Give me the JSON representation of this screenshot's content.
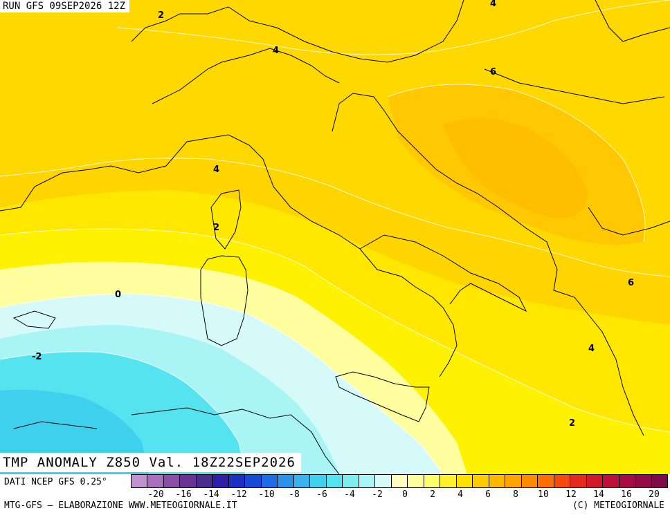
{
  "header": {
    "run_label": "RUN GFS 09SEP2026 12Z"
  },
  "title": {
    "text": "TMP ANOMALY Z850 Val. 18Z22SEP2026"
  },
  "footer": {
    "source": "DATI NCEP GFS 0.25°",
    "credit_left": "MTG-GFS – ELABORAZIONE WWW.METEOGIORNALE.IT",
    "credit_right": "(C) METEOGIORNALE"
  },
  "map": {
    "field": "850 hPa temperature anomaly",
    "units": "°C",
    "contour_labels": [
      {
        "value": "2"
      },
      {
        "value": "4"
      },
      {
        "value": "4"
      },
      {
        "value": "6"
      },
      {
        "value": "4"
      },
      {
        "value": "2"
      },
      {
        "value": "0"
      },
      {
        "value": "-2"
      },
      {
        "value": "6"
      },
      {
        "value": "4"
      },
      {
        "value": "2"
      }
    ]
  },
  "legend": {
    "labels": [
      "-20",
      "-16",
      "-14",
      "-12",
      "-10",
      "-8",
      "-6",
      "-4",
      "-2",
      "0",
      "2",
      "4",
      "6",
      "8",
      "10",
      "12",
      "14",
      "16",
      "20"
    ],
    "colors": [
      "#c390d0",
      "#a86fbe",
      "#8c4fa9",
      "#6a3393",
      "#4a2b8f",
      "#2d1fa6",
      "#1c2fc2",
      "#1549d6",
      "#1e6de4",
      "#2b92ec",
      "#39b3f0",
      "#3fd0ee",
      "#55e4ef",
      "#7eeef1",
      "#a9f4f4",
      "#d6fafa",
      "#ffffc0",
      "#ffffa0",
      "#ffff6a",
      "#fff22a",
      "#ffe100",
      "#ffcd00",
      "#ffb800",
      "#ffa300",
      "#ff8c00",
      "#ff6f00",
      "#f54a0c",
      "#e42a1a",
      "#d01a2a",
      "#bc1038",
      "#a60c44",
      "#920a48",
      "#7e0a4c"
    ]
  }
}
